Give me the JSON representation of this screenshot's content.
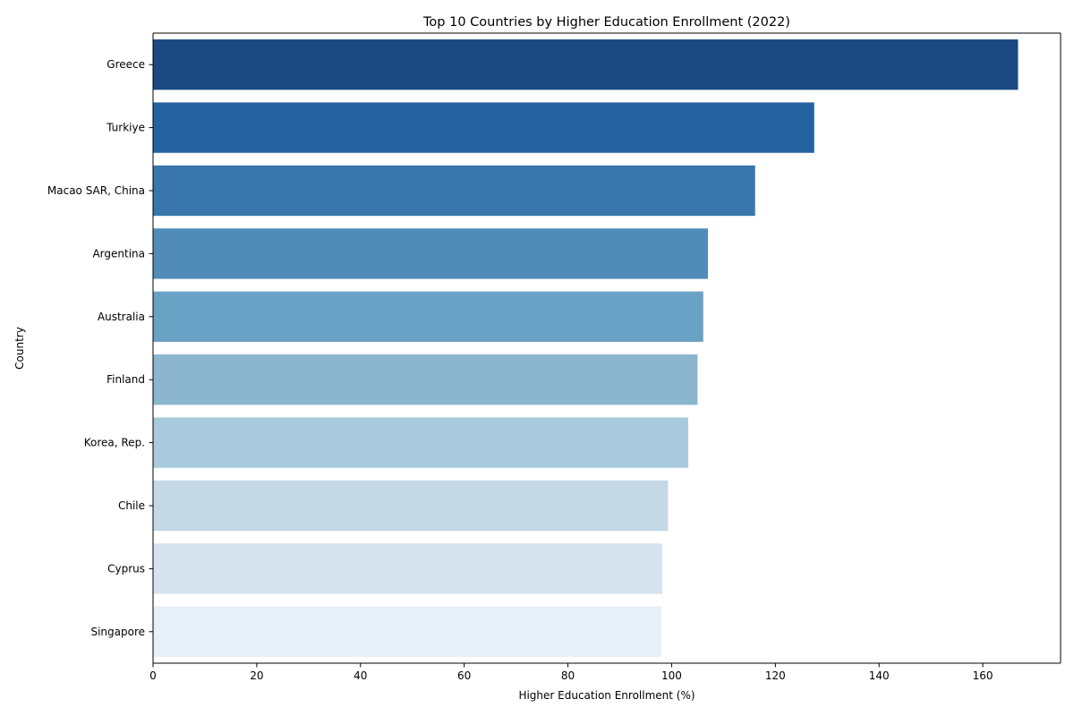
{
  "chart_data": {
    "type": "bar",
    "orientation": "horizontal",
    "title": "Top 10 Countries by Higher Education Enrollment (2022)",
    "xlabel": "Higher Education Enrollment (%)",
    "ylabel": "Country",
    "xlim": [
      0,
      175
    ],
    "xticks": [
      0,
      20,
      40,
      60,
      80,
      100,
      120,
      140,
      160
    ],
    "grid": false,
    "categories": [
      "Greece",
      "Turkiye",
      "Macao SAR, China",
      "Argentina",
      "Australia",
      "Finland",
      "Korea, Rep.",
      "Chile",
      "Cyprus",
      "Singapore"
    ],
    "values": [
      166.8,
      127.5,
      116.1,
      107.0,
      106.1,
      105.0,
      103.2,
      99.3,
      98.2,
      98.0
    ],
    "colors": [
      "#1a4a81",
      "#2562a0",
      "#3876ab",
      "#508cb7",
      "#6aa2c5",
      "#8bb6ce",
      "#a9c9dc",
      "#c4d8e6",
      "#d6e3ef",
      "#e7eff8"
    ]
  }
}
